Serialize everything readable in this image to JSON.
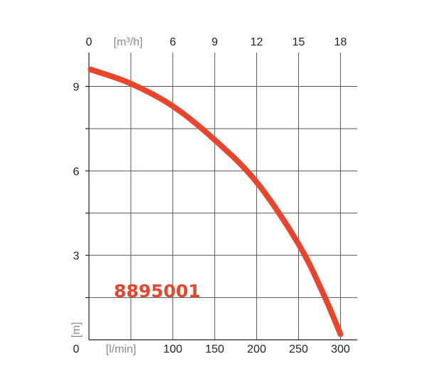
{
  "chart_data": {
    "type": "line",
    "title": "",
    "model_label": "8895001",
    "x_bottom": {
      "unit": "[l/min]",
      "range": [
        0,
        320
      ],
      "ticks": [
        0,
        100,
        150,
        200,
        250,
        300
      ],
      "tick_labels": [
        "0",
        "100",
        "150",
        "200",
        "250",
        "300"
      ]
    },
    "x_top": {
      "unit": "[m³/h]",
      "range": [
        0,
        19.2
      ],
      "ticks": [
        0,
        6,
        9,
        12,
        15,
        18
      ],
      "tick_labels": [
        "0",
        "6",
        "9",
        "12",
        "15",
        "18"
      ]
    },
    "y": {
      "unit": "[m]",
      "range": [
        0,
        10.2
      ],
      "ticks": [
        0,
        3,
        6,
        9
      ],
      "tick_labels": [
        "0",
        "3",
        "6",
        "9"
      ]
    },
    "grid": true,
    "line_color": "#e8452c",
    "series": [
      {
        "x": [
          2,
          50,
          100,
          150,
          200,
          250,
          280,
          300
        ],
        "y": [
          9.6,
          9.1,
          8.3,
          7.1,
          5.6,
          3.4,
          1.6,
          0.2
        ]
      }
    ]
  }
}
